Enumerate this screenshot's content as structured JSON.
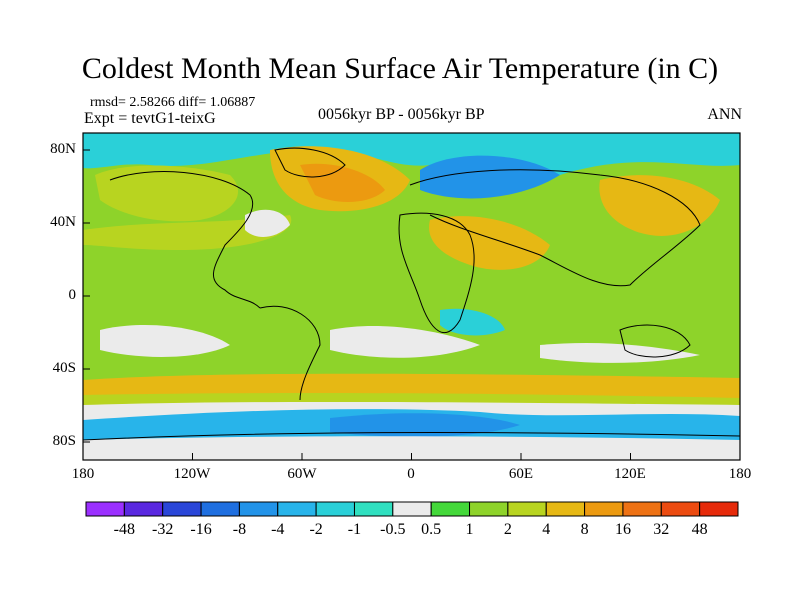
{
  "title": "Coldest Month Mean Surface Air Temperature (in C)",
  "stats_line": "rmsd= 2.58266 diff= 1.06887",
  "experiment": "Expt = tevtG1-teixG",
  "period": "0056kyr BP - 0056kyr BP",
  "season": "ANN",
  "map": {
    "lat_ticks": [
      "80N",
      "40N",
      "0",
      "40S",
      "80S"
    ],
    "lon_ticks": [
      "180",
      "120W",
      "60W",
      "0",
      "60E",
      "120E",
      "180"
    ]
  },
  "colorbar": {
    "labels": [
      "-48",
      "-32",
      "-16",
      "-8",
      "-4",
      "-2",
      "-1",
      "-0.5",
      "0.5",
      "1",
      "2",
      "4",
      "8",
      "16",
      "32",
      "48"
    ],
    "colors": [
      "#9b30ff",
      "#5a28e0",
      "#2a46d8",
      "#1f6fe0",
      "#2293e8",
      "#28b4ea",
      "#2ad0d8",
      "#30e0c0",
      "#ebebeb",
      "#44d83a",
      "#8ed32a",
      "#b8d420",
      "#e6b814",
      "#ec9a10",
      "#ee7214",
      "#ec4b10",
      "#e62a0a"
    ]
  }
}
